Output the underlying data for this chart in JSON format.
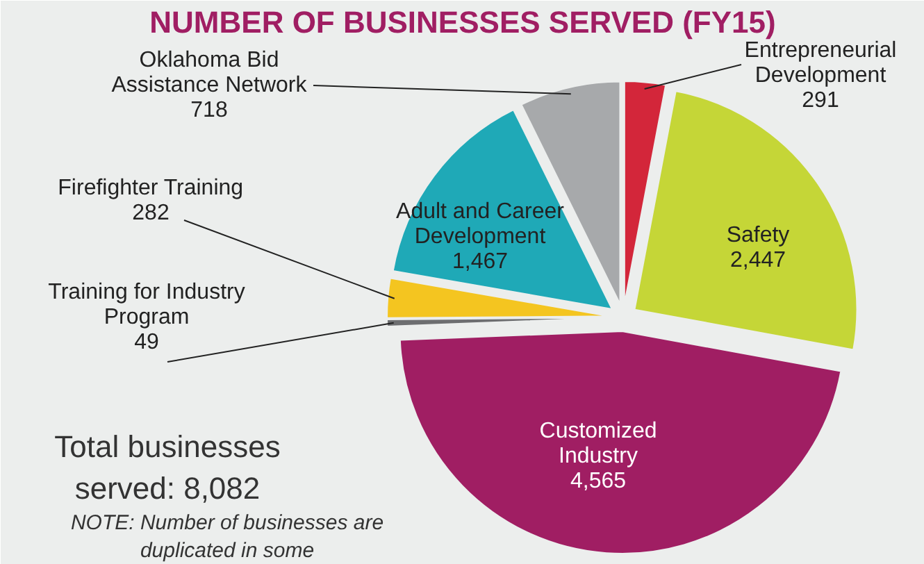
{
  "chart_data": {
    "type": "pie",
    "title": "NUMBER OF BUSINESSES SERVED (FY15)",
    "categories": [
      "Entrepreneurial Development",
      "Safety",
      "Customized Industry",
      "Training for Industry Program",
      "Firefighter Training",
      "Adult and Career Development",
      "Oklahoma Bid Assistance Network"
    ],
    "values": [
      291,
      2447,
      4565,
      49,
      282,
      1467,
      718
    ],
    "colors": [
      "#d3263a",
      "#c5d637",
      "#a01e63",
      "#6d6e70",
      "#f4c520",
      "#1fa9b7",
      "#a7a9ab"
    ],
    "value_labels": [
      "291",
      "2,447",
      "4,565",
      "49",
      "282",
      "1,467",
      "718"
    ],
    "annotations": [
      "Total businesses served: 8,082",
      "NOTE: Number of businesses are duplicated in some"
    ]
  }
}
